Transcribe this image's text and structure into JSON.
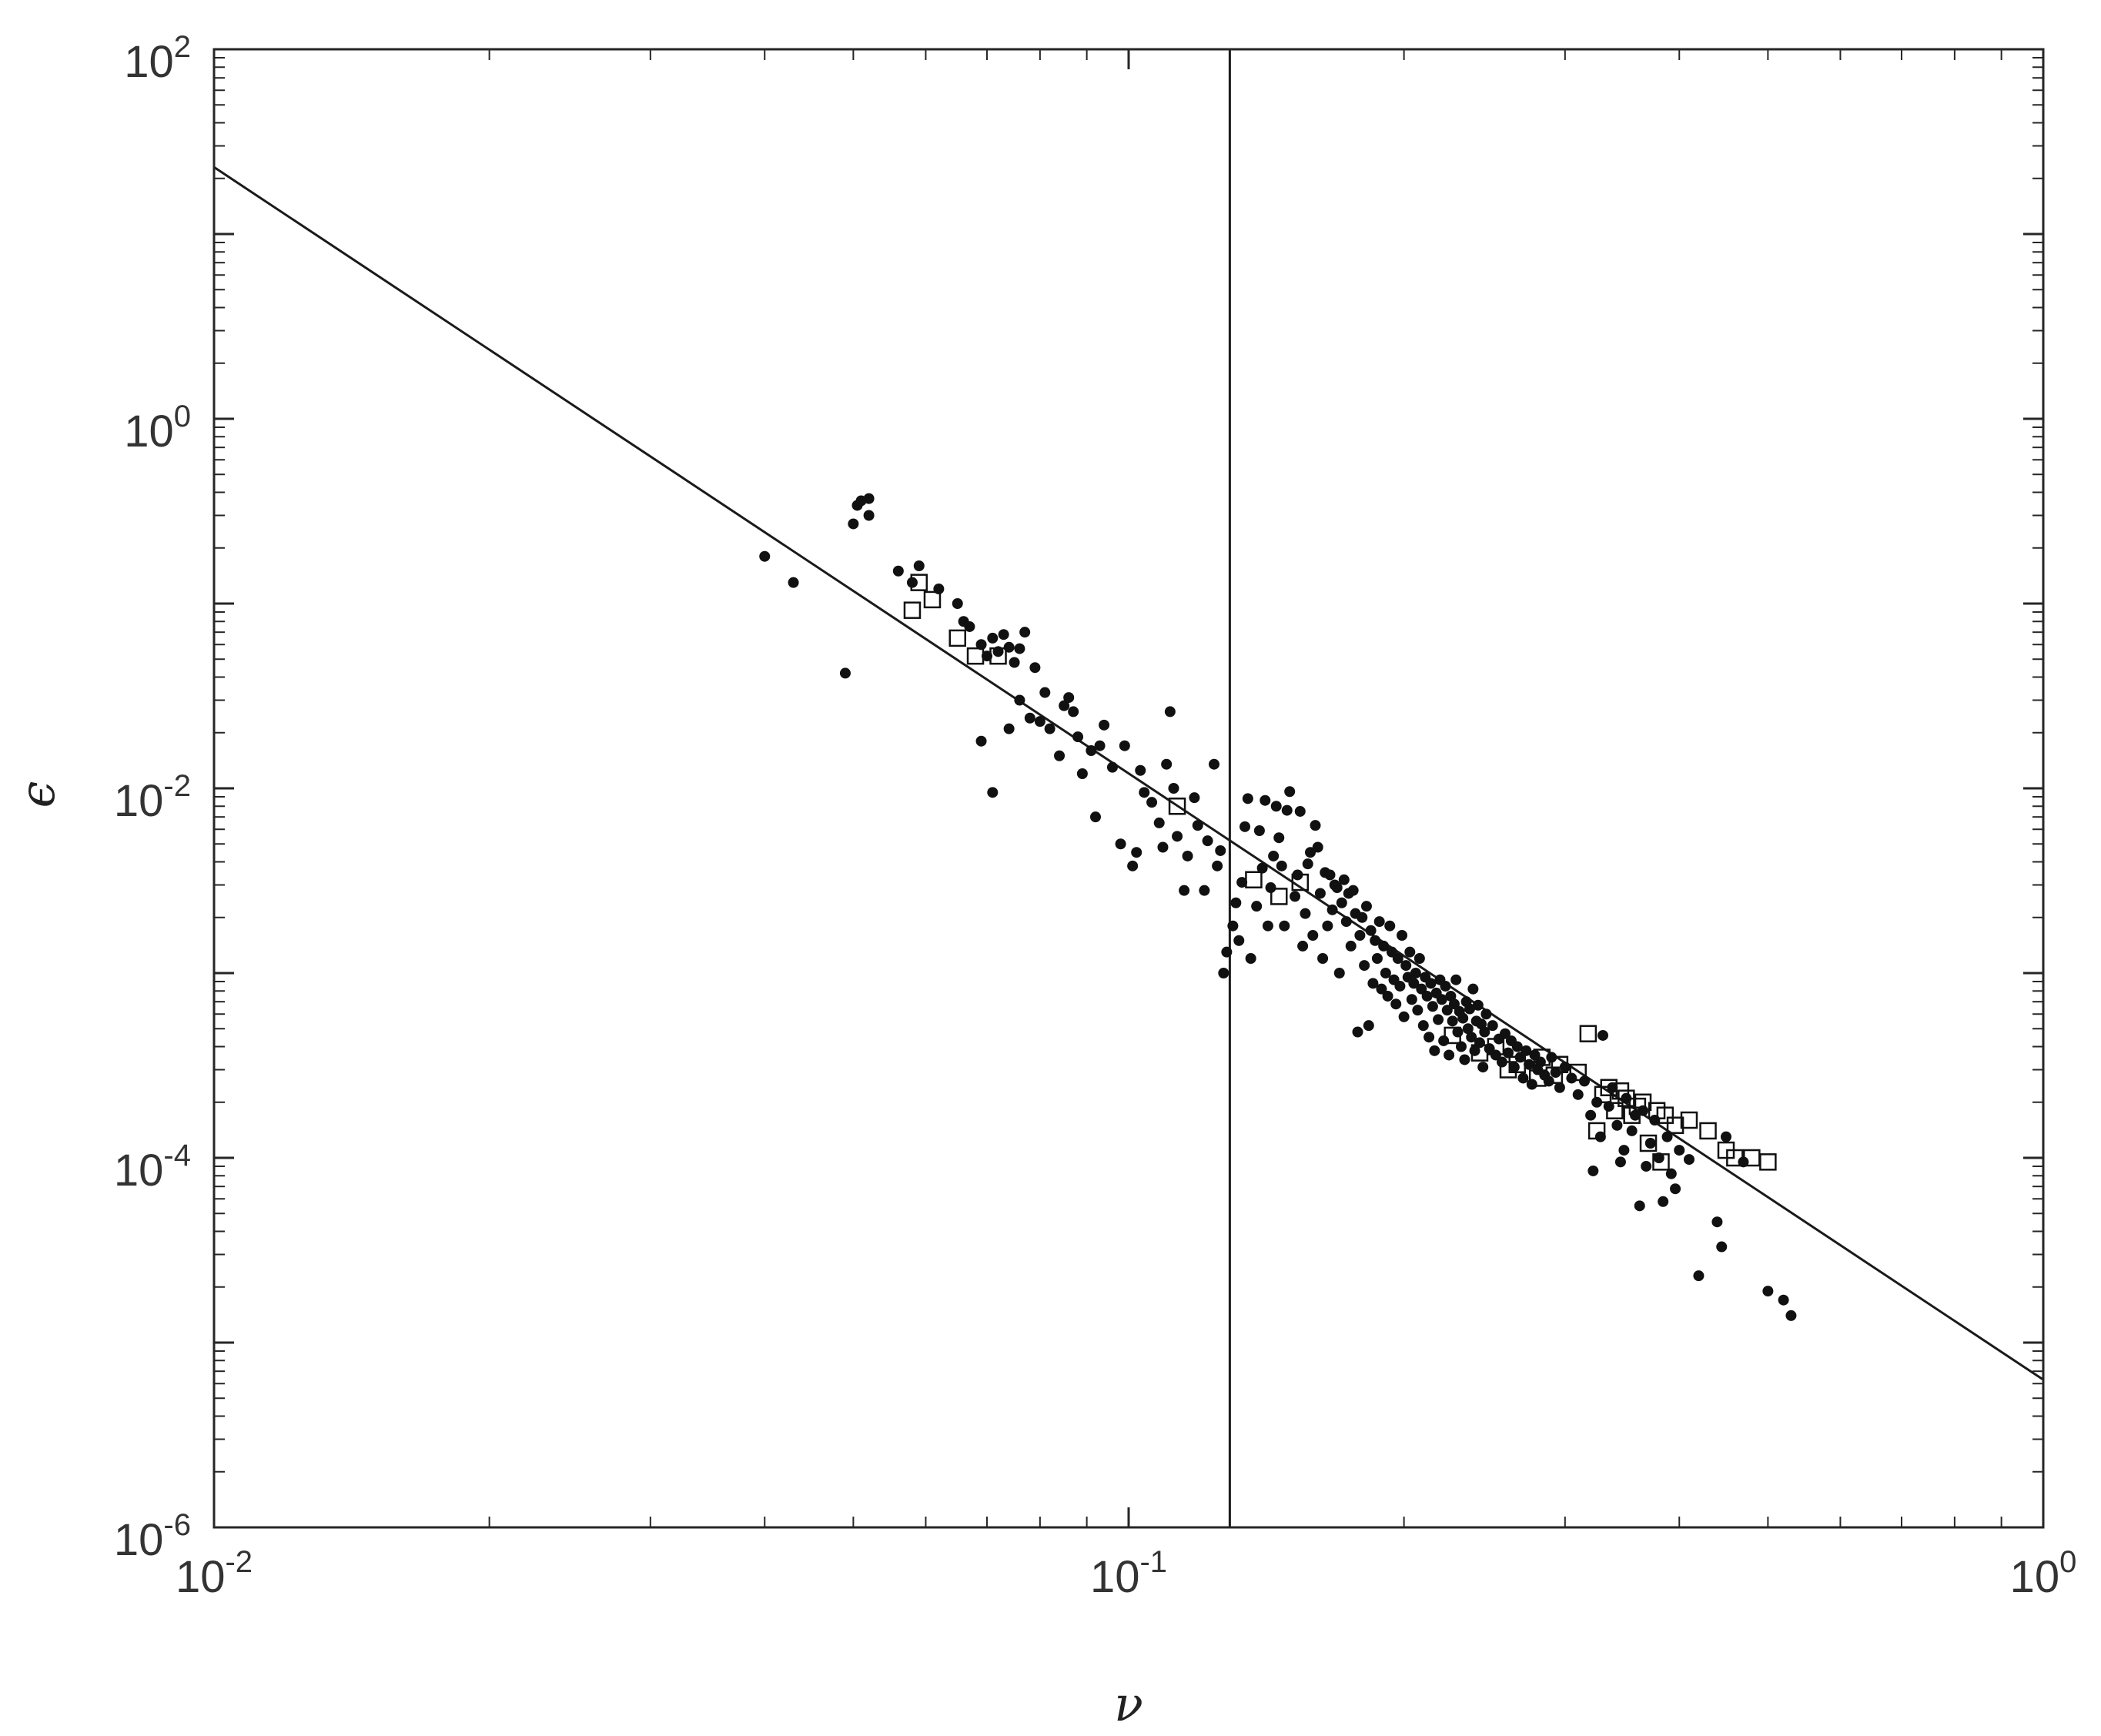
{
  "chart_data": {
    "type": "scatter",
    "title": "",
    "xlabel": "ν",
    "ylabel": "ϵ",
    "xscale": "log",
    "yscale": "log",
    "xlim": [
      0.01,
      1
    ],
    "ylim": [
      1e-06,
      100
    ],
    "grid": false,
    "legend": "none",
    "x_ticks": [
      {
        "base": "10",
        "exp": "-2",
        "value": 0.01
      },
      {
        "base": "10",
        "exp": "-1",
        "value": 0.1
      },
      {
        "base": "10",
        "exp": "0",
        "value": 1
      }
    ],
    "y_ticks": [
      {
        "base": "10",
        "exp": "-6",
        "value": 1e-06
      },
      {
        "base": "10",
        "exp": "-4",
        "value": 0.0001
      },
      {
        "base": "10",
        "exp": "-2",
        "value": 0.01
      },
      {
        "base": "10",
        "exp": "0",
        "value": 1
      },
      {
        "base": "10",
        "exp": "2",
        "value": 100
      }
    ],
    "reference_lines": {
      "power_law": {
        "x": [
          0.01,
          1
        ],
        "y": [
          23,
          6.3e-06
        ]
      },
      "vertical": {
        "x": 0.129
      }
    },
    "series": [
      {
        "marker": "filled-circle",
        "points": [
          [
            0.04,
            0.18
          ],
          [
            0.043,
            0.13
          ],
          [
            0.049,
            0.042
          ],
          [
            0.05,
            0.27
          ],
          [
            0.0505,
            0.34
          ],
          [
            0.051,
            0.36
          ],
          [
            0.052,
            0.37
          ],
          [
            0.052,
            0.3
          ],
          [
            0.056,
            0.15
          ],
          [
            0.058,
            0.13
          ],
          [
            0.059,
            0.16
          ],
          [
            0.062,
            0.12
          ],
          [
            0.065,
            0.1
          ],
          [
            0.066,
            0.08
          ],
          [
            0.067,
            0.075
          ],
          [
            0.069,
            0.06
          ],
          [
            0.07,
            0.052
          ],
          [
            0.071,
            0.065
          ],
          [
            0.072,
            0.055
          ],
          [
            0.073,
            0.068
          ],
          [
            0.074,
            0.058
          ],
          [
            0.075,
            0.048
          ],
          [
            0.076,
            0.057
          ],
          [
            0.077,
            0.07
          ],
          [
            0.079,
            0.045
          ],
          [
            0.069,
            0.018
          ],
          [
            0.071,
            0.0095
          ],
          [
            0.074,
            0.021
          ],
          [
            0.076,
            0.03
          ],
          [
            0.078,
            0.024
          ],
          [
            0.08,
            0.023
          ],
          [
            0.081,
            0.033
          ],
          [
            0.082,
            0.021
          ],
          [
            0.084,
            0.015
          ],
          [
            0.085,
            0.028
          ],
          [
            0.086,
            0.031
          ],
          [
            0.087,
            0.026
          ],
          [
            0.088,
            0.019
          ],
          [
            0.089,
            0.012
          ],
          [
            0.091,
            0.016
          ],
          [
            0.092,
            0.007
          ],
          [
            0.093,
            0.017
          ],
          [
            0.094,
            0.022
          ],
          [
            0.096,
            0.013
          ],
          [
            0.098,
            0.005
          ],
          [
            0.099,
            0.017
          ],
          [
            0.101,
            0.0038
          ],
          [
            0.102,
            0.0045
          ],
          [
            0.103,
            0.0125
          ],
          [
            0.104,
            0.0095
          ],
          [
            0.106,
            0.0084
          ],
          [
            0.108,
            0.0065
          ],
          [
            0.109,
            0.0048
          ],
          [
            0.11,
            0.0135
          ],
          [
            0.111,
            0.026
          ],
          [
            0.112,
            0.01
          ],
          [
            0.113,
            0.0055
          ],
          [
            0.115,
            0.0028
          ],
          [
            0.116,
            0.0043
          ],
          [
            0.118,
            0.0089
          ],
          [
            0.119,
            0.0063
          ],
          [
            0.121,
            0.0028
          ],
          [
            0.122,
            0.0052
          ],
          [
            0.124,
            0.0135
          ],
          [
            0.125,
            0.0038
          ],
          [
            0.126,
            0.0046
          ],
          [
            0.127,
            0.001
          ],
          [
            0.128,
            0.0013
          ],
          [
            0.13,
            0.0018
          ],
          [
            0.131,
            0.0024
          ],
          [
            0.132,
            0.0015
          ],
          [
            0.133,
            0.0031
          ],
          [
            0.134,
            0.0062
          ],
          [
            0.135,
            0.0088
          ],
          [
            0.136,
            0.0012
          ],
          [
            0.138,
            0.0023
          ],
          [
            0.139,
            0.0059
          ],
          [
            0.14,
            0.0037
          ],
          [
            0.141,
            0.0086
          ],
          [
            0.142,
            0.0018
          ],
          [
            0.143,
            0.0029
          ],
          [
            0.144,
            0.0043
          ],
          [
            0.145,
            0.008
          ],
          [
            0.146,
            0.0054
          ],
          [
            0.147,
            0.0038
          ],
          [
            0.148,
            0.0018
          ],
          [
            0.149,
            0.0076
          ],
          [
            0.15,
            0.0096
          ],
          [
            0.152,
            0.0026
          ],
          [
            0.153,
            0.0034
          ],
          [
            0.154,
            0.0075
          ],
          [
            0.155,
            0.0014
          ],
          [
            0.156,
            0.0021
          ],
          [
            0.157,
            0.0039
          ],
          [
            0.158,
            0.0045
          ],
          [
            0.159,
            0.0016
          ],
          [
            0.16,
            0.0063
          ],
          [
            0.161,
            0.0048
          ],
          [
            0.162,
            0.0027
          ],
          [
            0.163,
            0.0012
          ],
          [
            0.164,
            0.0035
          ],
          [
            0.165,
            0.0018
          ],
          [
            0.166,
            0.0034
          ],
          [
            0.167,
            0.0022
          ],
          [
            0.168,
            0.003
          ],
          [
            0.169,
            0.0029
          ],
          [
            0.17,
            0.001
          ],
          [
            0.171,
            0.0024
          ],
          [
            0.172,
            0.0032
          ],
          [
            0.173,
            0.0019
          ],
          [
            0.174,
            0.0027
          ],
          [
            0.175,
            0.0014
          ],
          [
            0.176,
            0.0028
          ],
          [
            0.177,
            0.0021
          ],
          [
            0.178,
            0.00048
          ],
          [
            0.179,
            0.0016
          ],
          [
            0.18,
            0.002
          ],
          [
            0.181,
            0.0011
          ],
          [
            0.182,
            0.0023
          ],
          [
            0.183,
            0.00052
          ],
          [
            0.184,
            0.0017
          ],
          [
            0.185,
            0.00088
          ],
          [
            0.186,
            0.0015
          ],
          [
            0.187,
            0.0012
          ],
          [
            0.188,
            0.0019
          ],
          [
            0.189,
            0.00082
          ],
          [
            0.19,
            0.0014
          ],
          [
            0.191,
            0.001
          ],
          [
            0.192,
            0.00075
          ],
          [
            0.193,
            0.0018
          ],
          [
            0.194,
            0.0013
          ],
          [
            0.195,
            0.00092
          ],
          [
            0.196,
            0.00068
          ],
          [
            0.197,
            0.0012
          ],
          [
            0.198,
            0.00085
          ],
          [
            0.199,
            0.0016
          ],
          [
            0.2,
            0.00058
          ],
          [
            0.201,
            0.0011
          ],
          [
            0.202,
            0.00095
          ],
          [
            0.203,
            0.0013
          ],
          [
            0.204,
            0.00072
          ],
          [
            0.205,
            0.00088
          ],
          [
            0.206,
            0.001
          ],
          [
            0.207,
            0.00063
          ],
          [
            0.208,
            0.0012
          ],
          [
            0.209,
            0.00082
          ],
          [
            0.21,
            0.00052
          ],
          [
            0.211,
            0.00095
          ],
          [
            0.212,
            0.00075
          ],
          [
            0.213,
            0.00045
          ],
          [
            0.214,
            0.00088
          ],
          [
            0.215,
            0.00066
          ],
          [
            0.216,
            0.00038
          ],
          [
            0.217,
            0.00078
          ],
          [
            0.218,
            0.00056
          ],
          [
            0.219,
            0.00092
          ],
          [
            0.22,
            0.00072
          ],
          [
            0.221,
            0.00043
          ],
          [
            0.222,
            0.00085
          ],
          [
            0.223,
            0.00063
          ],
          [
            0.224,
            0.00036
          ],
          [
            0.225,
            0.00075
          ],
          [
            0.226,
            0.00055
          ],
          [
            0.227,
            0.00068
          ],
          [
            0.228,
            0.00092
          ],
          [
            0.229,
            0.00048
          ],
          [
            0.23,
            0.00062
          ],
          [
            0.231,
            0.0004
          ],
          [
            0.232,
            0.00057
          ],
          [
            0.233,
            0.00034
          ],
          [
            0.234,
            0.0007
          ],
          [
            0.235,
            0.0005
          ],
          [
            0.236,
            0.00064
          ],
          [
            0.237,
            0.00045
          ],
          [
            0.238,
            0.00082
          ],
          [
            0.239,
            0.00038
          ],
          [
            0.24,
            0.00055
          ],
          [
            0.241,
            0.00067
          ],
          [
            0.242,
            0.00042
          ],
          [
            0.243,
            0.00053
          ],
          [
            0.244,
            0.00031
          ],
          [
            0.245,
            0.00048
          ],
          [
            0.246,
            0.0006
          ],
          [
            0.248,
            0.00039
          ],
          [
            0.25,
            0.00052
          ],
          [
            0.252,
            0.00036
          ],
          [
            0.254,
            0.00044
          ],
          [
            0.256,
            0.00033
          ],
          [
            0.258,
            0.00047
          ],
          [
            0.26,
            0.00037
          ],
          [
            0.262,
            0.00043
          ],
          [
            0.264,
            0.00031
          ],
          [
            0.266,
            0.0004
          ],
          [
            0.268,
            0.00035
          ],
          [
            0.27,
            0.00027
          ],
          [
            0.272,
            0.00038
          ],
          [
            0.274,
            0.00032
          ],
          [
            0.276,
            0.00025
          ],
          [
            0.278,
            0.00036
          ],
          [
            0.28,
            0.0003
          ],
          [
            0.282,
            0.00033
          ],
          [
            0.285,
            0.00028
          ],
          [
            0.288,
            0.00026
          ],
          [
            0.29,
            0.00035
          ],
          [
            0.293,
            0.00029
          ],
          [
            0.296,
            0.00024
          ],
          [
            0.3,
            0.00031
          ],
          [
            0.305,
            0.00027
          ],
          [
            0.31,
            0.00022
          ],
          [
            0.315,
            0.00026
          ],
          [
            0.32,
            0.00017
          ],
          [
            0.322,
            8.5e-05
          ],
          [
            0.325,
            0.0002
          ],
          [
            0.328,
            0.00013
          ],
          [
            0.33,
            0.00046
          ],
          [
            0.335,
            0.00019
          ],
          [
            0.338,
            0.00024
          ],
          [
            0.342,
            0.00015
          ],
          [
            0.345,
            9.5e-05
          ],
          [
            0.348,
            0.00011
          ],
          [
            0.35,
            0.00021
          ],
          [
            0.355,
            0.00014
          ],
          [
            0.358,
            0.00017
          ],
          [
            0.362,
            5.5e-05
          ],
          [
            0.365,
            0.00018
          ],
          [
            0.368,
            9e-05
          ],
          [
            0.372,
            0.00012
          ],
          [
            0.376,
            0.00016
          ],
          [
            0.38,
            0.0001
          ],
          [
            0.384,
            5.8e-05
          ],
          [
            0.388,
            0.00013
          ],
          [
            0.392,
            8.2e-05
          ],
          [
            0.396,
            6.8e-05
          ],
          [
            0.4,
            0.00011
          ],
          [
            0.41,
            9.8e-05
          ],
          [
            0.42,
            2.3e-05
          ],
          [
            0.44,
            4.5e-05
          ],
          [
            0.445,
            3.3e-05
          ],
          [
            0.45,
            0.00013
          ],
          [
            0.47,
            9.5e-05
          ],
          [
            0.5,
            1.9e-05
          ],
          [
            0.52,
            1.7e-05
          ],
          [
            0.53,
            1.4e-05
          ]
        ]
      },
      {
        "marker": "open-square",
        "points": [
          [
            0.058,
            0.092
          ],
          [
            0.059,
            0.13
          ],
          [
            0.061,
            0.105
          ],
          [
            0.065,
            0.065
          ],
          [
            0.068,
            0.052
          ],
          [
            0.072,
            0.052
          ],
          [
            0.113,
            0.008
          ],
          [
            0.137,
            0.0032
          ],
          [
            0.146,
            0.0026
          ],
          [
            0.154,
            0.0031
          ],
          [
            0.226,
            0.00046
          ],
          [
            0.242,
            0.00037
          ],
          [
            0.252,
            0.0004
          ],
          [
            0.26,
            0.0003
          ],
          [
            0.266,
            0.00032
          ],
          [
            0.28,
            0.00027
          ],
          [
            0.283,
            0.00035
          ],
          [
            0.292,
            0.00028
          ],
          [
            0.296,
            0.00032
          ],
          [
            0.31,
            0.00029
          ],
          [
            0.318,
            0.00047
          ],
          [
            0.325,
            0.00014
          ],
          [
            0.33,
            0.00022
          ],
          [
            0.335,
            0.00024
          ],
          [
            0.34,
            0.00018
          ],
          [
            0.345,
            0.00023
          ],
          [
            0.35,
            0.00021
          ],
          [
            0.355,
            0.00017
          ],
          [
            0.36,
            0.00019
          ],
          [
            0.365,
            0.0002
          ],
          [
            0.37,
            0.00012
          ],
          [
            0.378,
            0.00018
          ],
          [
            0.382,
            9.5e-05
          ],
          [
            0.386,
            0.00017
          ],
          [
            0.396,
            0.00015
          ],
          [
            0.41,
            0.00016
          ],
          [
            0.43,
            0.00014
          ],
          [
            0.45,
            0.00011
          ],
          [
            0.46,
            0.0001
          ],
          [
            0.48,
            0.0001
          ],
          [
            0.5,
            9.5e-05
          ]
        ]
      }
    ]
  }
}
